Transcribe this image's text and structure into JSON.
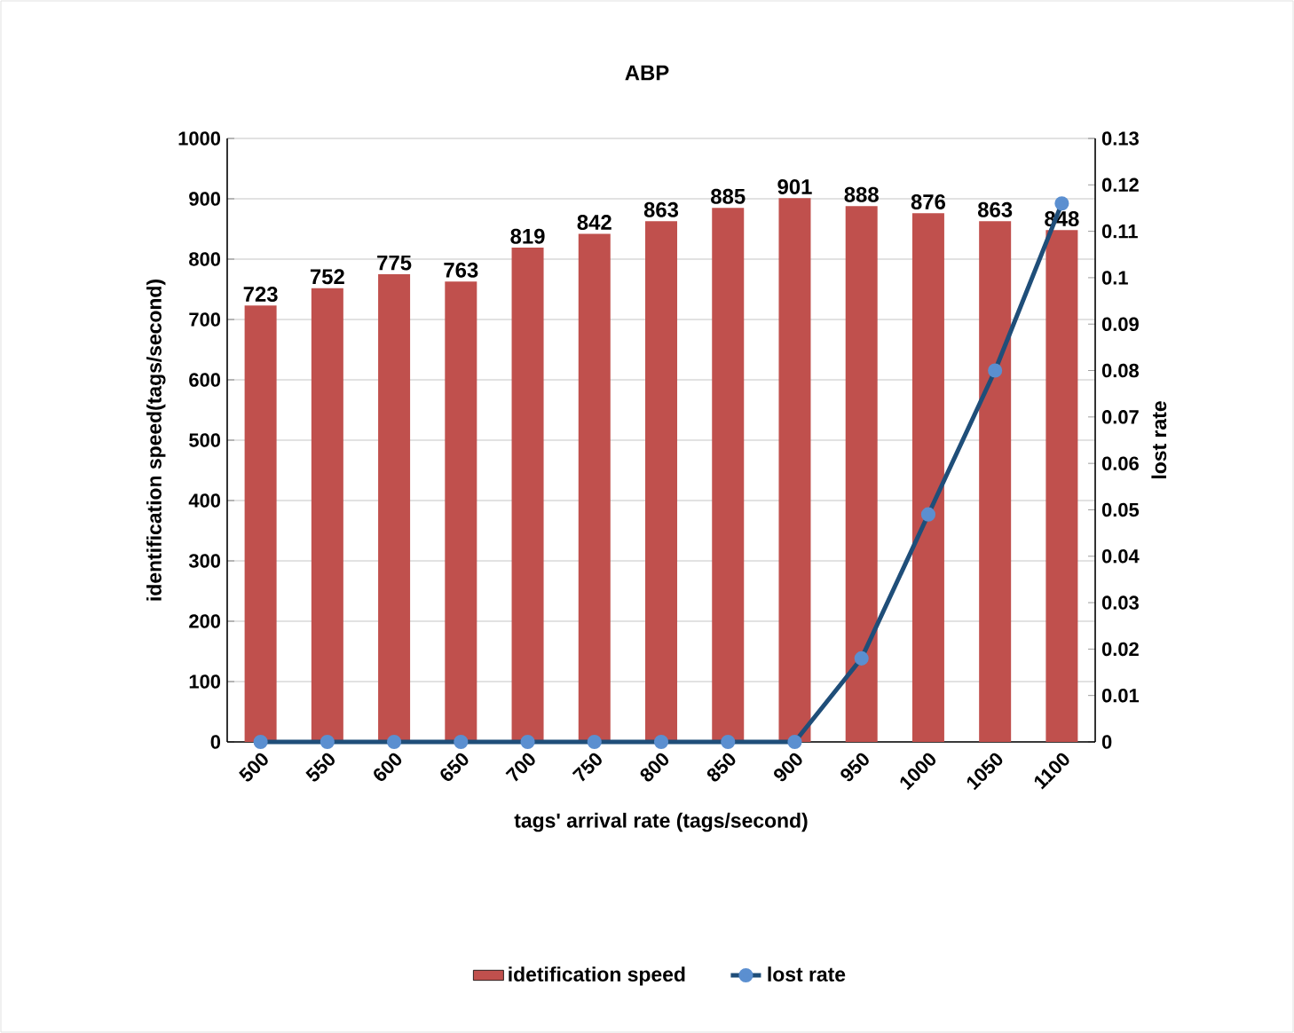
{
  "chart_data": {
    "type": "bar",
    "title": "ABP",
    "xlabel": "tags' arrival rate (tags/second)",
    "ylabel": "identification speed(tags/second)",
    "y2label": "lost rate",
    "categories": [
      "500",
      "550",
      "600",
      "650",
      "700",
      "750",
      "800",
      "850",
      "900",
      "950",
      "1000",
      "1050",
      "1100"
    ],
    "series": [
      {
        "name": "idetification speed",
        "color": "#c0504d",
        "values": [
          723,
          752,
          775,
          763,
          819,
          842,
          863,
          885,
          901,
          888,
          876,
          863,
          848
        ],
        "value_labels": [
          "723",
          "752",
          "775",
          "763",
          "819",
          "842",
          "863",
          "885",
          "901",
          "888",
          "876",
          "863",
          "848"
        ]
      },
      {
        "name": "lost rate",
        "type": "line",
        "axis": "y2",
        "color": "#1f4e79",
        "marker": "circle",
        "values": [
          0,
          0,
          0,
          0,
          0,
          0,
          0,
          0,
          0,
          0.018,
          0.049,
          0.08,
          0.116
        ]
      }
    ],
    "ylim": [
      0,
      1000
    ],
    "yticks": [
      0,
      100,
      200,
      300,
      400,
      500,
      600,
      700,
      800,
      900,
      1000
    ],
    "y2lim": [
      0,
      0.13
    ],
    "y2ticks": [
      0,
      0.01,
      0.02,
      0.03,
      0.04,
      0.05,
      0.06,
      0.07,
      0.08,
      0.09,
      0.1,
      0.11,
      0.12,
      0.13
    ],
    "grid": "y",
    "legend": "bottom"
  }
}
